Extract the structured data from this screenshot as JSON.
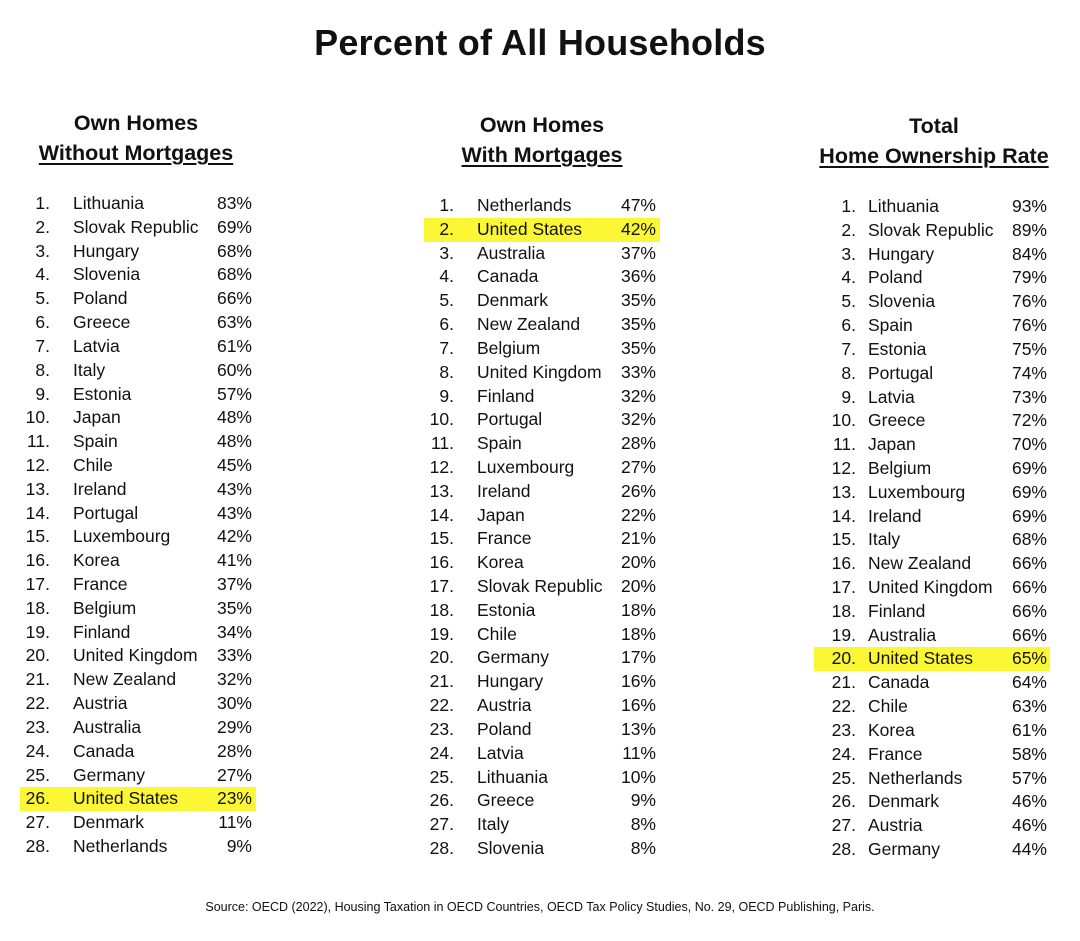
{
  "title": "Percent of All Households",
  "columns": [
    {
      "heading_line1": "Own Homes",
      "heading_line2": "Without Mortgages",
      "rows": [
        {
          "rank": "1.",
          "country": "Lithuania",
          "pct": "83%"
        },
        {
          "rank": "2.",
          "country": "Slovak Republic",
          "pct": "69%"
        },
        {
          "rank": "3.",
          "country": "Hungary",
          "pct": "68%"
        },
        {
          "rank": "4.",
          "country": "Slovenia",
          "pct": "68%"
        },
        {
          "rank": "5.",
          "country": "Poland",
          "pct": "66%"
        },
        {
          "rank": "6.",
          "country": "Greece",
          "pct": "63%"
        },
        {
          "rank": "7.",
          "country": "Latvia",
          "pct": "61%"
        },
        {
          "rank": "8.",
          "country": "Italy",
          "pct": "60%"
        },
        {
          "rank": "9.",
          "country": "Estonia",
          "pct": "57%"
        },
        {
          "rank": "10.",
          "country": "Japan",
          "pct": "48%"
        },
        {
          "rank": "11.",
          "country": "Spain",
          "pct": "48%"
        },
        {
          "rank": "12.",
          "country": "Chile",
          "pct": "45%"
        },
        {
          "rank": "13.",
          "country": "Ireland",
          "pct": "43%"
        },
        {
          "rank": "14.",
          "country": "Portugal",
          "pct": "43%"
        },
        {
          "rank": "15.",
          "country": "Luxembourg",
          "pct": "42%"
        },
        {
          "rank": "16.",
          "country": "Korea",
          "pct": "41%"
        },
        {
          "rank": "17.",
          "country": "France",
          "pct": "37%"
        },
        {
          "rank": "18.",
          "country": "Belgium",
          "pct": "35%"
        },
        {
          "rank": "19.",
          "country": "Finland",
          "pct": "34%"
        },
        {
          "rank": "20.",
          "country": "United Kingdom",
          "pct": "33%"
        },
        {
          "rank": "21.",
          "country": "New Zealand",
          "pct": "32%"
        },
        {
          "rank": "22.",
          "country": "Austria",
          "pct": "30%"
        },
        {
          "rank": "23.",
          "country": "Australia",
          "pct": "29%"
        },
        {
          "rank": "24.",
          "country": "Canada",
          "pct": "28%"
        },
        {
          "rank": "25.",
          "country": "Germany",
          "pct": "27%"
        },
        {
          "rank": "26.",
          "country": "United States",
          "pct": "23%",
          "highlight": true
        },
        {
          "rank": "27.",
          "country": "Denmark",
          "pct": "11%"
        },
        {
          "rank": "28.",
          "country": "Netherlands",
          "pct": "9%"
        }
      ]
    },
    {
      "heading_line1": "Own Homes",
      "heading_line2": "With Mortgages",
      "rows": [
        {
          "rank": "1.",
          "country": "Netherlands",
          "pct": "47%"
        },
        {
          "rank": "2.",
          "country": "United States",
          "pct": "42%",
          "highlight": true
        },
        {
          "rank": "3.",
          "country": "Australia",
          "pct": "37%"
        },
        {
          "rank": "4.",
          "country": "Canada",
          "pct": "36%"
        },
        {
          "rank": "5.",
          "country": "Denmark",
          "pct": "35%"
        },
        {
          "rank": "6.",
          "country": "New Zealand",
          "pct": "35%"
        },
        {
          "rank": "7.",
          "country": "Belgium",
          "pct": "35%"
        },
        {
          "rank": "8.",
          "country": "United Kingdom",
          "pct": "33%"
        },
        {
          "rank": "9.",
          "country": "Finland",
          "pct": "32%"
        },
        {
          "rank": "10.",
          "country": "Portugal",
          "pct": "32%"
        },
        {
          "rank": "11.",
          "country": "Spain",
          "pct": "28%"
        },
        {
          "rank": "12.",
          "country": "Luxembourg",
          "pct": "27%"
        },
        {
          "rank": "13.",
          "country": "Ireland",
          "pct": "26%"
        },
        {
          "rank": "14.",
          "country": "Japan",
          "pct": "22%"
        },
        {
          "rank": "15.",
          "country": "France",
          "pct": "21%"
        },
        {
          "rank": "16.",
          "country": "Korea",
          "pct": "20%"
        },
        {
          "rank": "17.",
          "country": "Slovak Republic",
          "pct": "20%"
        },
        {
          "rank": "18.",
          "country": "Estonia",
          "pct": "18%"
        },
        {
          "rank": "19.",
          "country": "Chile",
          "pct": "18%"
        },
        {
          "rank": "20.",
          "country": "Germany",
          "pct": "17%"
        },
        {
          "rank": "21.",
          "country": "Hungary",
          "pct": "16%"
        },
        {
          "rank": "22.",
          "country": "Austria",
          "pct": "16%"
        },
        {
          "rank": "23.",
          "country": "Poland",
          "pct": "13%"
        },
        {
          "rank": "24.",
          "country": "Latvia",
          "pct": "11%"
        },
        {
          "rank": "25.",
          "country": "Lithuania",
          "pct": "10%"
        },
        {
          "rank": "26.",
          "country": "Greece",
          "pct": "9%"
        },
        {
          "rank": "27.",
          "country": "Italy",
          "pct": "8%"
        },
        {
          "rank": "28.",
          "country": "Slovenia",
          "pct": "8%"
        }
      ]
    },
    {
      "heading_line1": "Total",
      "heading_line2": "Home Ownership Rate",
      "rows": [
        {
          "rank": "1.",
          "country": "Lithuania",
          "pct": "93%"
        },
        {
          "rank": "2.",
          "country": "Slovak Republic",
          "pct": "89%"
        },
        {
          "rank": "3.",
          "country": "Hungary",
          "pct": "84%"
        },
        {
          "rank": "4.",
          "country": "Poland",
          "pct": "79%"
        },
        {
          "rank": "5.",
          "country": "Slovenia",
          "pct": "76%"
        },
        {
          "rank": "6.",
          "country": "Spain",
          "pct": "76%"
        },
        {
          "rank": "7.",
          "country": "Estonia",
          "pct": "75%"
        },
        {
          "rank": "8.",
          "country": "Portugal",
          "pct": "74%"
        },
        {
          "rank": "9.",
          "country": "Latvia",
          "pct": "73%"
        },
        {
          "rank": "10.",
          "country": "Greece",
          "pct": "72%"
        },
        {
          "rank": "11.",
          "country": "Japan",
          "pct": "70%"
        },
        {
          "rank": "12.",
          "country": "Belgium",
          "pct": "69%"
        },
        {
          "rank": "13.",
          "country": "Luxembourg",
          "pct": "69%"
        },
        {
          "rank": "14.",
          "country": "Ireland",
          "pct": "69%"
        },
        {
          "rank": "15.",
          "country": "Italy",
          "pct": "68%"
        },
        {
          "rank": "16.",
          "country": "New Zealand",
          "pct": "66%"
        },
        {
          "rank": "17.",
          "country": "United Kingdom",
          "pct": "66%"
        },
        {
          "rank": "18.",
          "country": "Finland",
          "pct": "66%"
        },
        {
          "rank": "19.",
          "country": "Australia",
          "pct": "66%"
        },
        {
          "rank": "20.",
          "country": "United States",
          "pct": "65%",
          "highlight": true
        },
        {
          "rank": "21.",
          "country": "Canada",
          "pct": "64%"
        },
        {
          "rank": "22.",
          "country": "Chile",
          "pct": "63%"
        },
        {
          "rank": "23.",
          "country": "Korea",
          "pct": "61%"
        },
        {
          "rank": "24.",
          "country": "France",
          "pct": "58%"
        },
        {
          "rank": "25.",
          "country": "Netherlands",
          "pct": "57%"
        },
        {
          "rank": "26.",
          "country": "Denmark",
          "pct": "46%"
        },
        {
          "rank": "27.",
          "country": "Austria",
          "pct": "46%"
        },
        {
          "rank": "28.",
          "country": "Germany",
          "pct": "44%"
        }
      ]
    }
  ],
  "colors": {
    "highlight": "#fbf735",
    "text": "#111111",
    "background": "#ffffff"
  },
  "source": "Source: OECD (2022), Housing Taxation in OECD Countries, OECD Tax Policy Studies, No. 29, OECD Publishing, Paris."
}
